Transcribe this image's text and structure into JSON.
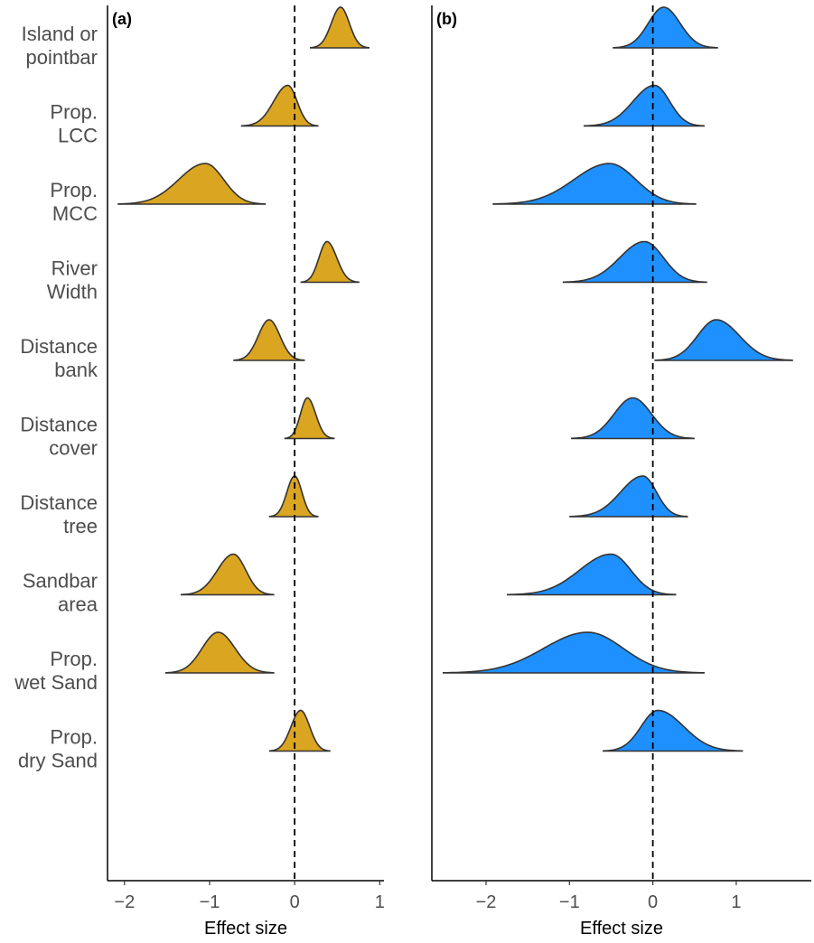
{
  "colors": {
    "panel_a_fill": "#DAA520",
    "panel_b_fill": "#1E90FF",
    "outline": "#333333"
  },
  "chart_data": [
    {
      "type": "ridgeline",
      "panel_label": "(a)",
      "xlabel": "Effect size",
      "xticks": [
        -2,
        -1,
        0,
        1
      ],
      "xlim": [
        -2.2,
        1.05
      ],
      "reference_line_x": 0,
      "categories": [
        "Island or pointbar",
        "Prop. LCC",
        "Prop. MCC",
        "River Width",
        "Distance bank",
        "Distance cover",
        "Distance tree",
        "Sandbar area",
        "Prop. wet Sand",
        "Prop. dry Sand"
      ],
      "category_lines": [
        [
          "Island or",
          "pointbar"
        ],
        [
          "Prop.",
          "LCC"
        ],
        [
          "Prop.",
          "MCC"
        ],
        [
          "River",
          "Width"
        ],
        [
          "Distance",
          "bank"
        ],
        [
          "Distance",
          "cover"
        ],
        [
          "Distance",
          "tree"
        ],
        [
          "Sandbar",
          "area"
        ],
        [
          "Prop.",
          "wet Sand"
        ],
        [
          "Prop.",
          "dry Sand"
        ]
      ],
      "series": [
        {
          "name": "Island or pointbar",
          "mode": 0.54,
          "min": 0.18,
          "max": 0.88
        },
        {
          "name": "Prop. LCC",
          "mode": -0.08,
          "min": -0.63,
          "max": 0.28
        },
        {
          "name": "Prop. MCC",
          "mode": -1.05,
          "min": -2.08,
          "max": -0.34
        },
        {
          "name": "River Width",
          "mode": 0.38,
          "min": 0.07,
          "max": 0.76
        },
        {
          "name": "Distance bank",
          "mode": -0.3,
          "min": -0.72,
          "max": 0.12
        },
        {
          "name": "Distance cover",
          "mode": 0.15,
          "min": -0.12,
          "max": 0.47
        },
        {
          "name": "Distance tree",
          "mode": 0.0,
          "min": -0.3,
          "max": 0.28
        },
        {
          "name": "Sandbar area",
          "mode": -0.72,
          "min": -1.34,
          "max": -0.24
        },
        {
          "name": "Prop. wet Sand",
          "mode": -0.9,
          "min": -1.52,
          "max": -0.24
        },
        {
          "name": "Prop. dry Sand",
          "mode": 0.07,
          "min": -0.3,
          "max": 0.42
        }
      ]
    },
    {
      "type": "ridgeline",
      "panel_label": "(b)",
      "xlabel": "Effect size",
      "xticks": [
        -2,
        -1,
        0,
        1
      ],
      "xlim": [
        -2.65,
        1.9
      ],
      "reference_line_x": 0,
      "categories": [
        "Island or pointbar",
        "Prop. LCC",
        "Prop. MCC",
        "River Width",
        "Distance bank",
        "Distance cover",
        "Distance tree",
        "Sandbar area",
        "Prop. wet Sand",
        "Prop. dry Sand"
      ],
      "series": [
        {
          "name": "Island or pointbar",
          "mode": 0.13,
          "min": -0.48,
          "max": 0.78
        },
        {
          "name": "Prop. LCC",
          "mode": 0.02,
          "min": -0.83,
          "max": 0.62
        },
        {
          "name": "Prop. MCC",
          "mode": -0.52,
          "min": -1.92,
          "max": 0.52
        },
        {
          "name": "River Width",
          "mode": -0.1,
          "min": -1.08,
          "max": 0.65
        },
        {
          "name": "Distance bank",
          "mode": 0.76,
          "min": 0.02,
          "max": 1.68
        },
        {
          "name": "Distance cover",
          "mode": -0.24,
          "min": -0.98,
          "max": 0.5
        },
        {
          "name": "Distance tree",
          "mode": -0.12,
          "min": -1.0,
          "max": 0.42
        },
        {
          "name": "Sandbar area",
          "mode": -0.5,
          "min": -1.75,
          "max": 0.28
        },
        {
          "name": "Prop. wet Sand",
          "mode": -0.78,
          "min": -2.52,
          "max": 0.62
        },
        {
          "name": "Prop. dry Sand",
          "mode": 0.06,
          "min": -0.6,
          "max": 1.08
        }
      ]
    }
  ]
}
